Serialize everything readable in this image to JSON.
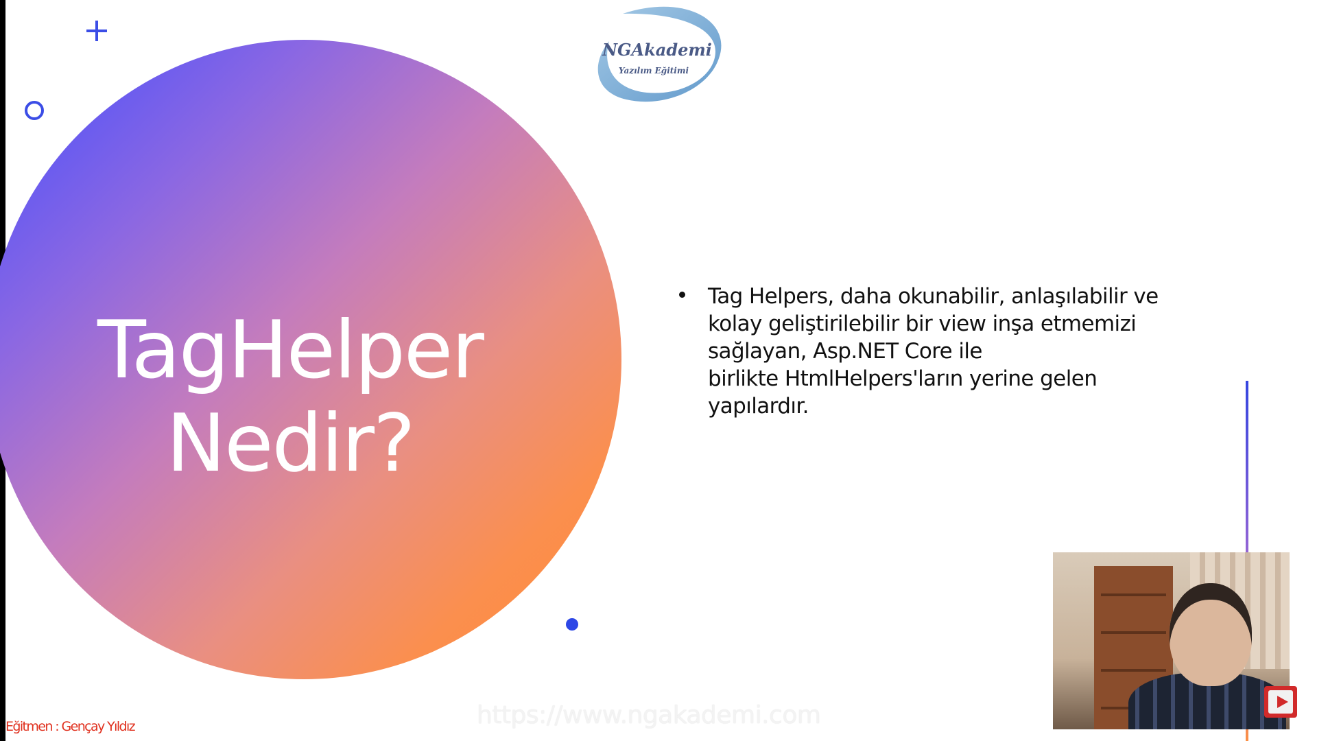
{
  "slide": {
    "title_lines": [
      "TagHelper",
      "Nedir?"
    ],
    "bullet_lines": [
      "Tag Helpers, daha okunabilir, anlaşılabilir ve",
      "kolay geliştirilebilir bir view inşa etmemizi",
      "sağlayan, Asp.NET Core ile",
      "birlikte HtmlHelpers'ların yerine gelen",
      "yapılardır."
    ]
  },
  "logo": {
    "name": "NGAkademi",
    "tagline": "Yazılım Eğitimi"
  },
  "overlay": {
    "instructor_credit": "Eğitmen : Gençay Yıldız",
    "website_url": "https://www.ngakademi.com"
  },
  "colors": {
    "gradient_start": "#3f4dff",
    "gradient_mid": "#c47cbd",
    "gradient_end": "#ff8a36",
    "accent_blue": "#3b4de6",
    "credit_red": "#e0301e"
  },
  "icons": [
    "plus-icon",
    "ring-icon",
    "dot-icon",
    "play-icon",
    "webcam-feed"
  ]
}
